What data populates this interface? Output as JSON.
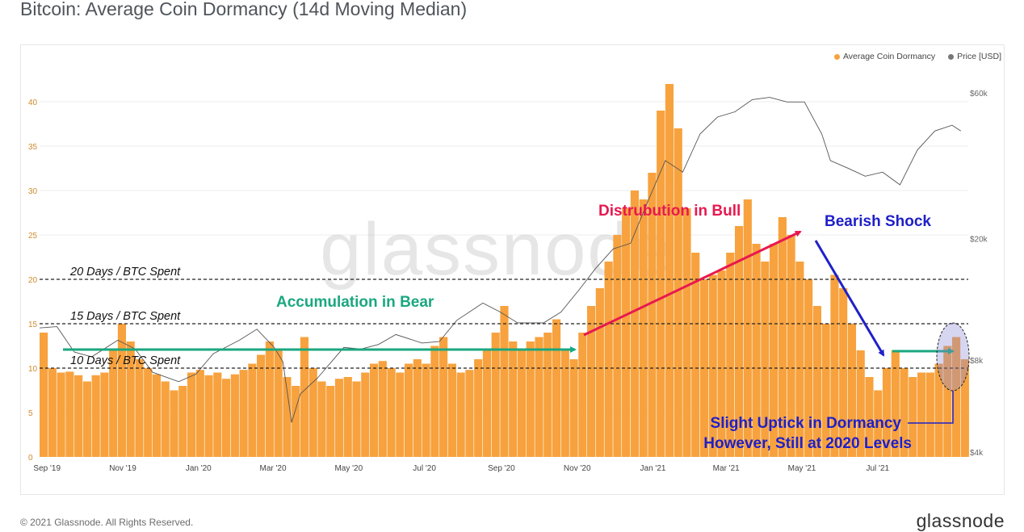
{
  "title": "Bitcoin: Average Coin Dormancy (14d Moving Median)",
  "legend": [
    {
      "label": "Average Coin Dormancy",
      "color": "#f7931a"
    },
    {
      "label": "Price [USD]",
      "color": "#777777"
    }
  ],
  "watermark": "glassnode",
  "footer": {
    "copyright": "© 2021 Glassnode. All Rights Reserved.",
    "logo": "glassnode"
  },
  "colors": {
    "bar": "#f7a23e",
    "price": "#555555",
    "green_arrow": "#1aa77f",
    "pink_arrow": "#e8184f",
    "blue_arrow": "#1f20c8",
    "left_axis_text": "#d08a2c"
  },
  "chart_data": {
    "type": "bar",
    "x_ticks": [
      "Sep '19",
      "Nov '19",
      "Jan '20",
      "Mar '20",
      "May '20",
      "Jul '20",
      "Sep '20",
      "Nov '20",
      "Jan '21",
      "Mar '21",
      "May '21",
      "Jul '21"
    ],
    "y_left": {
      "ticks": [
        0,
        5,
        10,
        15,
        20,
        25,
        30,
        35,
        40
      ],
      "ylim": [
        0,
        42
      ]
    },
    "y_right": {
      "ticks": [
        "$4k",
        "$8k",
        "$20k",
        "$60k"
      ],
      "tick_values": [
        4000,
        8000,
        20000,
        60000
      ],
      "scale": "log"
    },
    "series": [
      {
        "name": "Average Coin Dormancy",
        "type": "bar",
        "points": [
          [
            "2019-08-26",
            14
          ],
          [
            "2019-09-02",
            10
          ],
          [
            "2019-09-09",
            9.5
          ],
          [
            "2019-09-16",
            9.6
          ],
          [
            "2019-09-23",
            9.2
          ],
          [
            "2019-09-30",
            8.5
          ],
          [
            "2019-10-07",
            9.2
          ],
          [
            "2019-10-14",
            9.5
          ],
          [
            "2019-10-21",
            12
          ],
          [
            "2019-10-28",
            15
          ],
          [
            "2019-11-04",
            13
          ],
          [
            "2019-11-11",
            11
          ],
          [
            "2019-11-18",
            10
          ],
          [
            "2019-11-25",
            9.3
          ],
          [
            "2019-12-02",
            8.5
          ],
          [
            "2019-12-09",
            7.5
          ],
          [
            "2019-12-16",
            8
          ],
          [
            "2019-12-23",
            9.5
          ],
          [
            "2019-12-30",
            9.8
          ],
          [
            "2020-01-06",
            9.2
          ],
          [
            "2020-01-13",
            9.5
          ],
          [
            "2020-01-20",
            8.8
          ],
          [
            "2020-01-27",
            9.3
          ],
          [
            "2020-02-03",
            9.8
          ],
          [
            "2020-02-10",
            10.5
          ],
          [
            "2020-02-17",
            11.5
          ],
          [
            "2020-02-24",
            13
          ],
          [
            "2020-03-02",
            12
          ],
          [
            "2020-03-09",
            9
          ],
          [
            "2020-03-16",
            8
          ],
          [
            "2020-03-23",
            13.5
          ],
          [
            "2020-03-30",
            10
          ],
          [
            "2020-04-06",
            8.5
          ],
          [
            "2020-04-13",
            8
          ],
          [
            "2020-04-20",
            8.8
          ],
          [
            "2020-04-27",
            9
          ],
          [
            "2020-05-04",
            8.5
          ],
          [
            "2020-05-11",
            9.5
          ],
          [
            "2020-05-18",
            10.5
          ],
          [
            "2020-05-25",
            10.8
          ],
          [
            "2020-06-01",
            10
          ],
          [
            "2020-06-08",
            9.5
          ],
          [
            "2020-06-15",
            10.5
          ],
          [
            "2020-06-22",
            11
          ],
          [
            "2020-06-29",
            10.5
          ],
          [
            "2020-07-06",
            12.5
          ],
          [
            "2020-07-13",
            13.5
          ],
          [
            "2020-07-20",
            10.5
          ],
          [
            "2020-07-27",
            9.5
          ],
          [
            "2020-08-03",
            9.8
          ],
          [
            "2020-08-10",
            11
          ],
          [
            "2020-08-17",
            12
          ],
          [
            "2020-08-24",
            14
          ],
          [
            "2020-08-31",
            17
          ],
          [
            "2020-09-07",
            13
          ],
          [
            "2020-09-14",
            12
          ],
          [
            "2020-09-21",
            13
          ],
          [
            "2020-09-28",
            13.5
          ],
          [
            "2020-10-05",
            14
          ],
          [
            "2020-10-12",
            15.5
          ],
          [
            "2020-10-19",
            12
          ],
          [
            "2020-10-26",
            11
          ],
          [
            "2020-11-02",
            14
          ],
          [
            "2020-11-09",
            17
          ],
          [
            "2020-11-16",
            19
          ],
          [
            "2020-11-23",
            22
          ],
          [
            "2020-11-30",
            25
          ],
          [
            "2020-12-07",
            28
          ],
          [
            "2020-12-14",
            30
          ],
          [
            "2020-12-21",
            29
          ],
          [
            "2020-12-28",
            32
          ],
          [
            "2021-01-04",
            39
          ],
          [
            "2021-01-11",
            42
          ],
          [
            "2021-01-18",
            37
          ],
          [
            "2021-01-25",
            28
          ],
          [
            "2021-02-01",
            23
          ],
          [
            "2021-02-08",
            20
          ],
          [
            "2021-02-15",
            20.5
          ],
          [
            "2021-02-22",
            21
          ],
          [
            "2021-03-01",
            23
          ],
          [
            "2021-03-08",
            26
          ],
          [
            "2021-03-15",
            29
          ],
          [
            "2021-03-22",
            24
          ],
          [
            "2021-03-29",
            22
          ],
          [
            "2021-04-05",
            24
          ],
          [
            "2021-04-12",
            27
          ],
          [
            "2021-04-19",
            25
          ],
          [
            "2021-04-26",
            22
          ],
          [
            "2021-05-03",
            20
          ],
          [
            "2021-05-10",
            17
          ],
          [
            "2021-05-17",
            15
          ],
          [
            "2021-05-24",
            20.5
          ],
          [
            "2021-05-31",
            19
          ],
          [
            "2021-06-07",
            15
          ],
          [
            "2021-06-14",
            12
          ],
          [
            "2021-06-21",
            9
          ],
          [
            "2021-06-28",
            7.5
          ],
          [
            "2021-07-05",
            10
          ],
          [
            "2021-07-12",
            12
          ],
          [
            "2021-07-19",
            10
          ],
          [
            "2021-07-26",
            9
          ],
          [
            "2021-08-02",
            9.5
          ],
          [
            "2021-08-09",
            9.5
          ],
          [
            "2021-08-16",
            10.5
          ],
          [
            "2021-08-23",
            12.5
          ],
          [
            "2021-08-30",
            13.5
          ],
          [
            "2021-09-06",
            11
          ]
        ]
      },
      {
        "name": "Price [USD]",
        "type": "line",
        "points": [
          [
            "2019-08-26",
            10200
          ],
          [
            "2019-09-09",
            10300
          ],
          [
            "2019-09-23",
            8500
          ],
          [
            "2019-10-07",
            8200
          ],
          [
            "2019-10-28",
            9300
          ],
          [
            "2019-11-11",
            8700
          ],
          [
            "2019-11-25",
            7300
          ],
          [
            "2019-12-16",
            6800
          ],
          [
            "2019-12-30",
            7200
          ],
          [
            "2020-01-13",
            8400
          ],
          [
            "2020-02-03",
            9300
          ],
          [
            "2020-02-17",
            10100
          ],
          [
            "2020-03-02",
            8800
          ],
          [
            "2020-03-09",
            7900
          ],
          [
            "2020-03-16",
            5000
          ],
          [
            "2020-03-23",
            6200
          ],
          [
            "2020-04-06",
            7000
          ],
          [
            "2020-04-27",
            8800
          ],
          [
            "2020-05-11",
            8700
          ],
          [
            "2020-05-25",
            9000
          ],
          [
            "2020-06-08",
            9700
          ],
          [
            "2020-06-29",
            9100
          ],
          [
            "2020-07-13",
            9200
          ],
          [
            "2020-07-27",
            10800
          ],
          [
            "2020-08-17",
            12300
          ],
          [
            "2020-08-31",
            11500
          ],
          [
            "2020-09-14",
            10600
          ],
          [
            "2020-10-05",
            10600
          ],
          [
            "2020-10-19",
            11500
          ],
          [
            "2020-11-02",
            13500
          ],
          [
            "2020-11-16",
            16000
          ],
          [
            "2020-11-30",
            18500
          ],
          [
            "2020-12-14",
            19300
          ],
          [
            "2020-12-28",
            26500
          ],
          [
            "2021-01-11",
            36000
          ],
          [
            "2021-01-25",
            33000
          ],
          [
            "2021-02-08",
            44000
          ],
          [
            "2021-02-22",
            50000
          ],
          [
            "2021-03-08",
            52000
          ],
          [
            "2021-03-22",
            57000
          ],
          [
            "2021-04-05",
            58000
          ],
          [
            "2021-04-19",
            56000
          ],
          [
            "2021-05-03",
            56000
          ],
          [
            "2021-05-17",
            44000
          ],
          [
            "2021-05-24",
            36000
          ],
          [
            "2021-06-07",
            34000
          ],
          [
            "2021-06-21",
            32000
          ],
          [
            "2021-07-05",
            33000
          ],
          [
            "2021-07-19",
            30000
          ],
          [
            "2021-08-02",
            39000
          ],
          [
            "2021-08-16",
            45000
          ],
          [
            "2021-08-30",
            47000
          ],
          [
            "2021-09-06",
            45000
          ]
        ]
      }
    ],
    "reference_lines": [
      {
        "y": 20,
        "label": "20 Days / BTC Spent"
      },
      {
        "y": 15,
        "label": "15 Days / BTC Spent"
      },
      {
        "y": 10,
        "label": "10 Days / BTC Spent"
      }
    ],
    "annotations": [
      {
        "text": "Accumulation in Bear",
        "color": "#1aa77f"
      },
      {
        "text": "Distrubution in Bull",
        "color": "#e8184f"
      },
      {
        "text": "Bearish Shock",
        "color": "#1f20c8"
      },
      {
        "text": "Slight Uptick in Dormancy",
        "color": "#1f20c8"
      },
      {
        "text": "However, Still at 2020 Levels",
        "color": "#1f20c8"
      }
    ],
    "grid": true,
    "legend_position": "top-right"
  }
}
